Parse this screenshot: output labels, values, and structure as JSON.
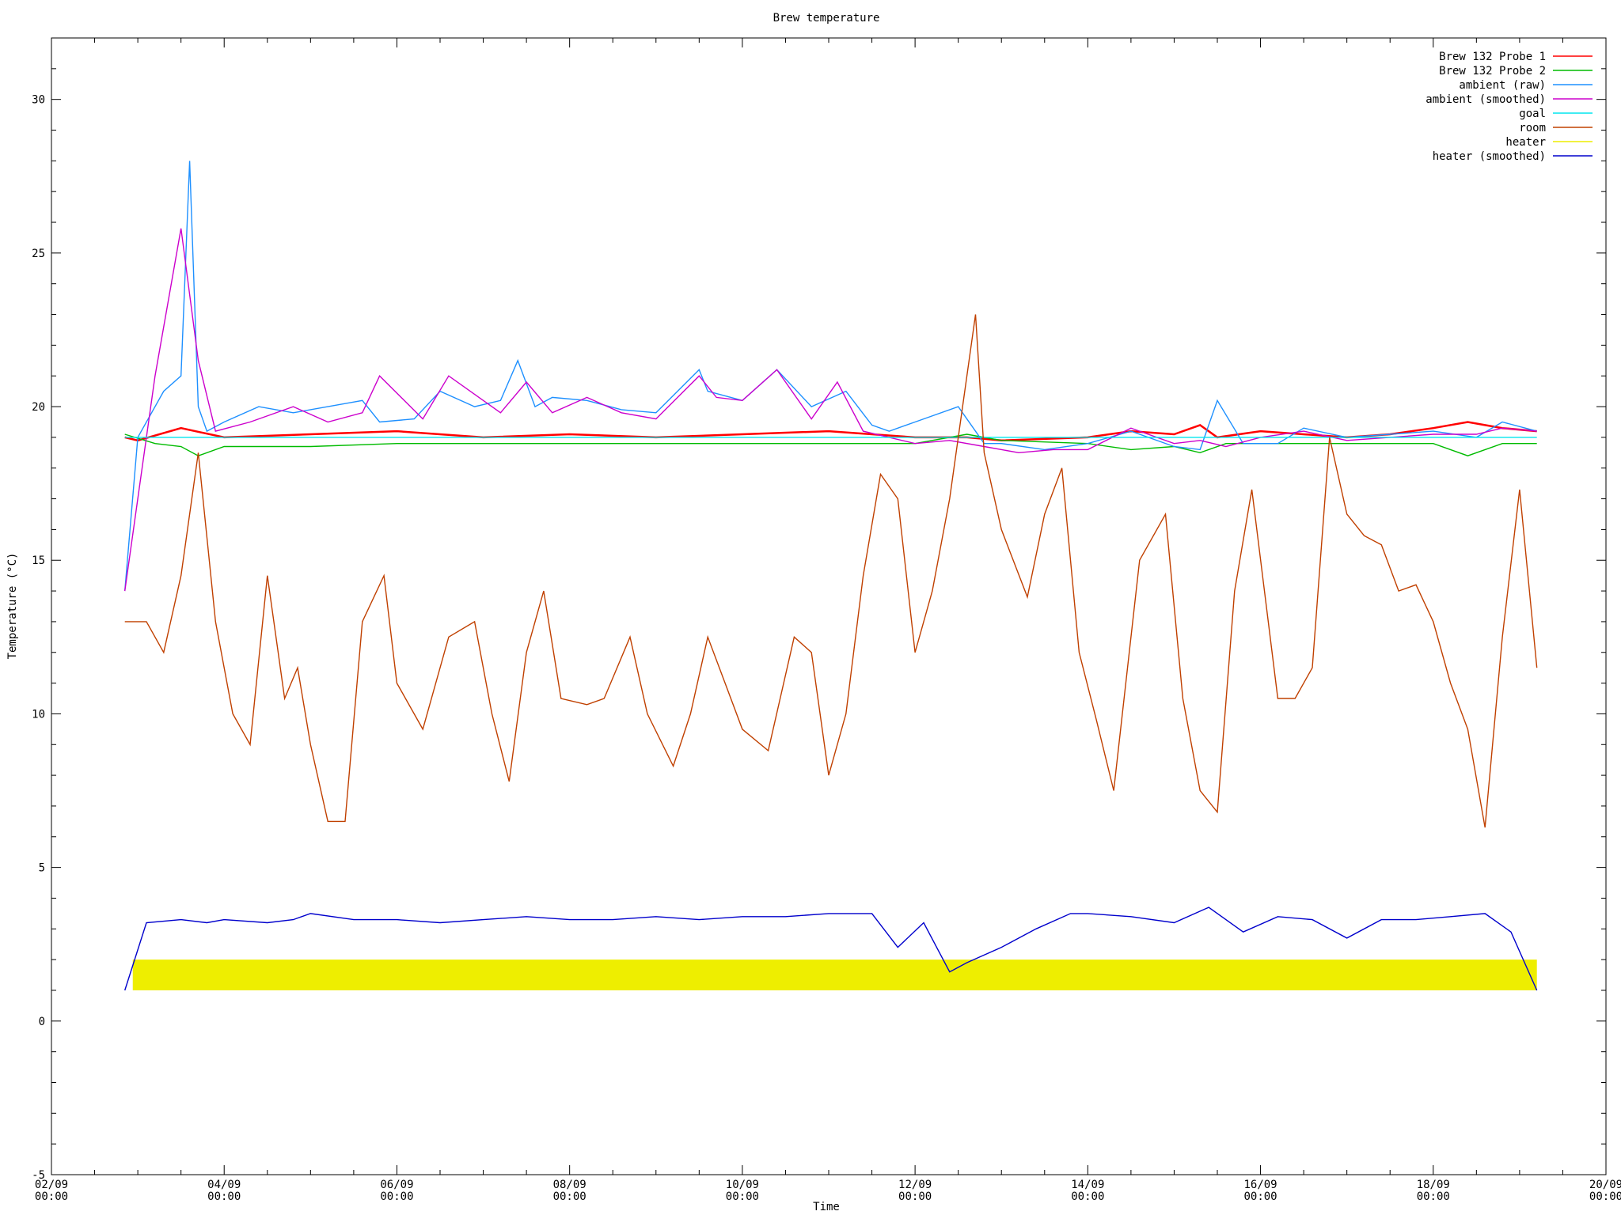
{
  "chart_data": {
    "type": "line",
    "title": "Brew temperature",
    "xlabel": "Time",
    "ylabel": "Temperature (°C)",
    "xlim_days": [
      2,
      20
    ],
    "ylim": [
      -5,
      32
    ],
    "y_ticks": [
      -5,
      0,
      5,
      10,
      15,
      20,
      25,
      30
    ],
    "x_ticks": [
      {
        "day": 2,
        "date": "02/09",
        "time": "00:00"
      },
      {
        "day": 4,
        "date": "04/09",
        "time": "00:00"
      },
      {
        "day": 6,
        "date": "06/09",
        "time": "00:00"
      },
      {
        "day": 8,
        "date": "08/09",
        "time": "00:00"
      },
      {
        "day": 10,
        "date": "10/09",
        "time": "00:00"
      },
      {
        "day": 12,
        "date": "12/09",
        "time": "00:00"
      },
      {
        "day": 14,
        "date": "14/09",
        "time": "00:00"
      },
      {
        "day": 16,
        "date": "16/09",
        "time": "00:00"
      },
      {
        "day": 18,
        "date": "18/09",
        "time": "00:00"
      },
      {
        "day": 20,
        "date": "20/09",
        "time": "00:00"
      }
    ],
    "legend_position": "top-right",
    "grid": false,
    "series": [
      {
        "name": "Brew 132 Probe 1",
        "color": "#ff0000",
        "x": [
          2.85,
          3.0,
          3.5,
          4.0,
          5.0,
          6.0,
          7.0,
          8.0,
          9.0,
          10.0,
          11.0,
          12.0,
          12.6,
          13.0,
          14.0,
          14.5,
          15.0,
          15.3,
          15.5,
          16.0,
          17.0,
          17.5,
          18.0,
          18.4,
          18.8,
          19.2,
          19.2
        ],
        "y": [
          19.0,
          18.9,
          19.3,
          19.0,
          19.1,
          19.2,
          19.0,
          19.1,
          19.0,
          19.1,
          19.2,
          19.0,
          19.0,
          18.9,
          19.0,
          19.2,
          19.1,
          19.4,
          19.0,
          19.2,
          19.0,
          19.1,
          19.3,
          19.5,
          19.3,
          19.2,
          19.2
        ]
      },
      {
        "name": "Brew 132 Probe 2",
        "color": "#00bb00",
        "x": [
          2.85,
          3.2,
          3.5,
          3.7,
          4.0,
          5.0,
          6.0,
          7.0,
          8.0,
          9.0,
          10.0,
          11.0,
          12.0,
          12.6,
          13.0,
          14.0,
          14.5,
          15.0,
          15.3,
          15.6,
          16.0,
          17.0,
          18.0,
          18.4,
          18.8,
          19.2
        ],
        "y": [
          19.1,
          18.8,
          18.7,
          18.4,
          18.7,
          18.7,
          18.8,
          18.8,
          18.8,
          18.8,
          18.8,
          18.8,
          18.8,
          19.1,
          18.9,
          18.8,
          18.6,
          18.7,
          18.5,
          18.8,
          18.8,
          18.8,
          18.8,
          18.4,
          18.8,
          18.8
        ]
      },
      {
        "name": "ambient (raw)",
        "color": "#1e90ff",
        "x": [
          2.85,
          3.0,
          3.3,
          3.5,
          3.6,
          3.7,
          3.8,
          4.0,
          4.4,
          4.8,
          5.2,
          5.6,
          5.8,
          6.2,
          6.5,
          6.9,
          7.2,
          7.4,
          7.6,
          7.8,
          8.2,
          8.6,
          9.0,
          9.5,
          9.6,
          10.0,
          10.4,
          10.8,
          11.2,
          11.5,
          11.7,
          12.0,
          12.5,
          12.8,
          13.0,
          13.5,
          14.0,
          14.5,
          15.0,
          15.3,
          15.5,
          15.8,
          16.2,
          16.5,
          17.0,
          17.5,
          18.0,
          18.5,
          18.8,
          19.2
        ],
        "y": [
          14.0,
          19.0,
          20.5,
          21.0,
          28.0,
          20.0,
          19.2,
          19.5,
          20.0,
          19.8,
          20.0,
          20.2,
          19.5,
          19.6,
          20.5,
          20.0,
          20.2,
          21.5,
          20.0,
          20.3,
          20.2,
          19.9,
          19.8,
          21.2,
          20.5,
          20.2,
          21.2,
          20.0,
          20.5,
          19.4,
          19.2,
          19.5,
          20.0,
          18.8,
          18.8,
          18.6,
          18.8,
          19.2,
          18.7,
          18.6,
          20.2,
          18.8,
          18.8,
          19.3,
          19.0,
          19.1,
          19.2,
          19.0,
          19.5,
          19.2
        ]
      },
      {
        "name": "ambient (smoothed)",
        "color": "#cc00cc",
        "x": [
          2.85,
          3.2,
          3.5,
          3.7,
          3.9,
          4.3,
          4.8,
          5.2,
          5.6,
          5.8,
          6.3,
          6.6,
          7.0,
          7.2,
          7.5,
          7.8,
          8.2,
          8.6,
          9.0,
          9.5,
          9.7,
          10.0,
          10.4,
          10.8,
          11.1,
          11.4,
          11.7,
          12.0,
          12.4,
          12.8,
          13.2,
          13.6,
          14.0,
          14.5,
          15.0,
          15.3,
          15.6,
          16.0,
          16.5,
          17.0,
          17.5,
          18.0,
          18.5,
          18.8,
          19.2
        ],
        "y": [
          14.0,
          21.0,
          25.8,
          21.5,
          19.2,
          19.5,
          20.0,
          19.5,
          19.8,
          21.0,
          19.6,
          21.0,
          20.2,
          19.8,
          20.8,
          19.8,
          20.3,
          19.8,
          19.6,
          21.0,
          20.3,
          20.2,
          21.2,
          19.6,
          20.8,
          19.2,
          19.0,
          18.8,
          18.9,
          18.7,
          18.5,
          18.6,
          18.6,
          19.3,
          18.8,
          18.9,
          18.7,
          19.0,
          19.2,
          18.9,
          19.0,
          19.1,
          19.1,
          19.3,
          19.2
        ]
      },
      {
        "name": "goal",
        "color": "#00e5ee",
        "x": [
          2.85,
          19.2
        ],
        "y": [
          19.0,
          19.0
        ]
      },
      {
        "name": "room",
        "color": "#c04000",
        "x": [
          2.85,
          3.1,
          3.3,
          3.5,
          3.7,
          3.9,
          4.1,
          4.3,
          4.5,
          4.7,
          4.85,
          5.0,
          5.2,
          5.4,
          5.6,
          5.85,
          6.0,
          6.3,
          6.6,
          6.9,
          7.1,
          7.3,
          7.5,
          7.7,
          7.9,
          8.2,
          8.4,
          8.7,
          8.9,
          9.2,
          9.4,
          9.6,
          9.8,
          10.0,
          10.3,
          10.6,
          10.8,
          11.0,
          11.2,
          11.4,
          11.6,
          11.8,
          12.0,
          12.2,
          12.4,
          12.7,
          12.8,
          13.0,
          13.3,
          13.5,
          13.7,
          13.9,
          14.1,
          14.3,
          14.6,
          14.9,
          15.1,
          15.3,
          15.5,
          15.7,
          15.9,
          16.2,
          16.4,
          16.6,
          16.8,
          17.0,
          17.2,
          17.4,
          17.6,
          17.8,
          18.0,
          18.2,
          18.4,
          18.6,
          18.8,
          19.0,
          19.2
        ],
        "y": [
          13.0,
          13.0,
          12.0,
          14.5,
          18.5,
          13.0,
          10.0,
          9.0,
          14.5,
          10.5,
          11.5,
          9.0,
          6.5,
          6.5,
          13.0,
          14.5,
          11.0,
          9.5,
          12.5,
          13.0,
          10.0,
          7.8,
          12.0,
          14.0,
          10.5,
          10.3,
          10.5,
          12.5,
          10.0,
          8.3,
          10.0,
          12.5,
          11.0,
          9.5,
          8.8,
          12.5,
          12.0,
          8.0,
          10.0,
          14.5,
          17.8,
          17.0,
          12.0,
          14.0,
          17.0,
          23.0,
          18.5,
          16.0,
          13.8,
          16.5,
          18.0,
          12.0,
          9.8,
          7.5,
          15.0,
          16.5,
          10.5,
          7.5,
          6.8,
          14.0,
          17.3,
          10.5,
          10.5,
          11.5,
          19.0,
          16.5,
          15.8,
          15.5,
          14.0,
          14.2,
          13.0,
          11.0,
          9.5,
          6.3,
          12.5,
          17.3,
          11.5
        ]
      },
      {
        "name": "heater",
        "color": "#eeee00",
        "x": [
          2.85,
          19.2
        ],
        "y": [
          1.0,
          2.0
        ]
      },
      {
        "name": "heater (smoothed)",
        "color": "#0000cc",
        "x": [
          2.85,
          3.1,
          3.5,
          3.8,
          4.0,
          4.5,
          4.8,
          5.0,
          5.5,
          6.0,
          6.5,
          7.0,
          7.5,
          8.0,
          8.5,
          9.0,
          9.5,
          10.0,
          10.5,
          11.0,
          11.5,
          11.8,
          12.1,
          12.4,
          12.6,
          13.0,
          13.4,
          13.8,
          14.0,
          14.5,
          15.0,
          15.4,
          15.8,
          16.2,
          16.6,
          17.0,
          17.4,
          17.8,
          18.2,
          18.6,
          18.9,
          19.2
        ],
        "y": [
          1.0,
          3.2,
          3.3,
          3.2,
          3.3,
          3.2,
          3.3,
          3.5,
          3.3,
          3.3,
          3.2,
          3.3,
          3.4,
          3.3,
          3.3,
          3.4,
          3.3,
          3.4,
          3.4,
          3.5,
          3.5,
          2.4,
          3.2,
          1.6,
          1.9,
          2.4,
          3.0,
          3.5,
          3.5,
          3.4,
          3.2,
          3.7,
          2.9,
          3.4,
          3.3,
          2.7,
          3.3,
          3.3,
          3.4,
          3.5,
          2.9,
          1.0
        ]
      }
    ]
  }
}
